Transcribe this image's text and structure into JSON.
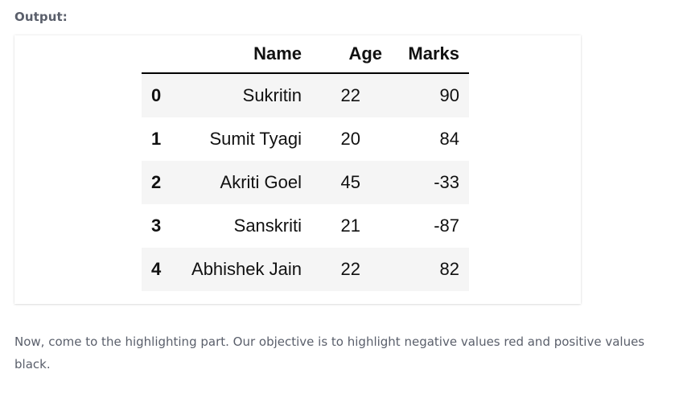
{
  "output_label": "Output:",
  "table": {
    "columns": [
      "",
      "Name",
      "Age",
      "Marks"
    ],
    "rows": [
      {
        "index": "0",
        "name": "Sukritin",
        "age": "22",
        "marks": "90"
      },
      {
        "index": "1",
        "name": "Sumit Tyagi",
        "age": "20",
        "marks": "84"
      },
      {
        "index": "2",
        "name": "Akriti Goel",
        "age": "45",
        "marks": "-33"
      },
      {
        "index": "3",
        "name": "Sanskriti",
        "age": "21",
        "marks": "-87"
      },
      {
        "index": "4",
        "name": "Abhishek Jain",
        "age": "22",
        "marks": "82"
      }
    ]
  },
  "paragraph": "Now, come to the highlighting part. Our objective is to highlight negative values red and positive values black."
}
